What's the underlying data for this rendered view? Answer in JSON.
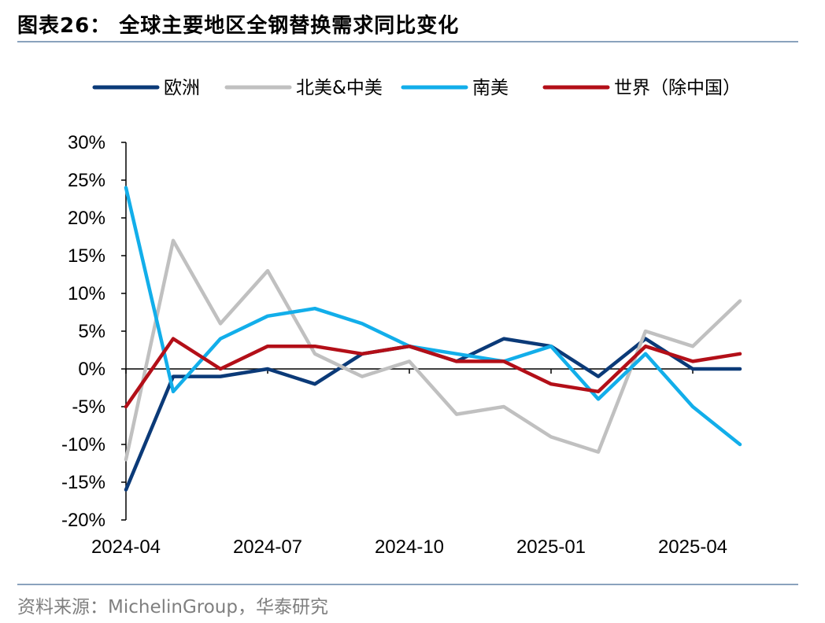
{
  "header": {
    "title": "图表26：  全球主要地区全钢替换需求同比变化"
  },
  "footer": {
    "source": "资料来源：MichelinGroup，华泰研究"
  },
  "colors": {
    "europe": "#0b3a78",
    "north_central_america": "#c0c0c0",
    "south_america": "#12aeea",
    "world_ex_china": "#b30f18",
    "axis": "#000000",
    "rule": "#8aa2bd"
  },
  "chart_data": {
    "type": "line",
    "title": "",
    "xlabel": "",
    "ylabel": "",
    "ylim": [
      -20,
      30
    ],
    "ytick_step": 5,
    "ytick_labels": [
      "-20%",
      "-15%",
      "-10%",
      "-5%",
      "0%",
      "5%",
      "10%",
      "15%",
      "20%",
      "25%",
      "30%"
    ],
    "grid": false,
    "legend_position": "top",
    "x": [
      "2024-04",
      "2024-05",
      "2024-06",
      "2024-07",
      "2024-08",
      "2024-09",
      "2024-10",
      "2024-11",
      "2024-12",
      "2025-01",
      "2025-02",
      "2025-03",
      "2025-04",
      "2025-05"
    ],
    "xtick_labels": [
      {
        "index": 0,
        "label": "2024-04"
      },
      {
        "index": 3,
        "label": "2024-07"
      },
      {
        "index": 6,
        "label": "2024-10"
      },
      {
        "index": 9,
        "label": "2025-01"
      },
      {
        "index": 12,
        "label": "2025-04"
      }
    ],
    "series": [
      {
        "name": "欧洲",
        "color_key": "europe",
        "values": [
          -16,
          -1,
          -1,
          0,
          -2,
          2,
          3,
          1,
          4,
          3,
          -1,
          4,
          0,
          0
        ]
      },
      {
        "name": "北美&中美",
        "color_key": "north_central_america",
        "values": [
          -12,
          17,
          6,
          13,
          2,
          -1,
          1,
          -6,
          -5,
          -9,
          -11,
          5,
          3,
          9
        ]
      },
      {
        "name": "南美",
        "color_key": "south_america",
        "values": [
          24,
          -3,
          4,
          7,
          8,
          6,
          3,
          2,
          1,
          3,
          -4,
          2,
          -5,
          -10
        ]
      },
      {
        "name": "世界（除中国）",
        "color_key": "world_ex_china",
        "values": [
          -5,
          4,
          0,
          3,
          3,
          2,
          3,
          1,
          1,
          -2,
          -3,
          3,
          1,
          2
        ]
      }
    ]
  }
}
